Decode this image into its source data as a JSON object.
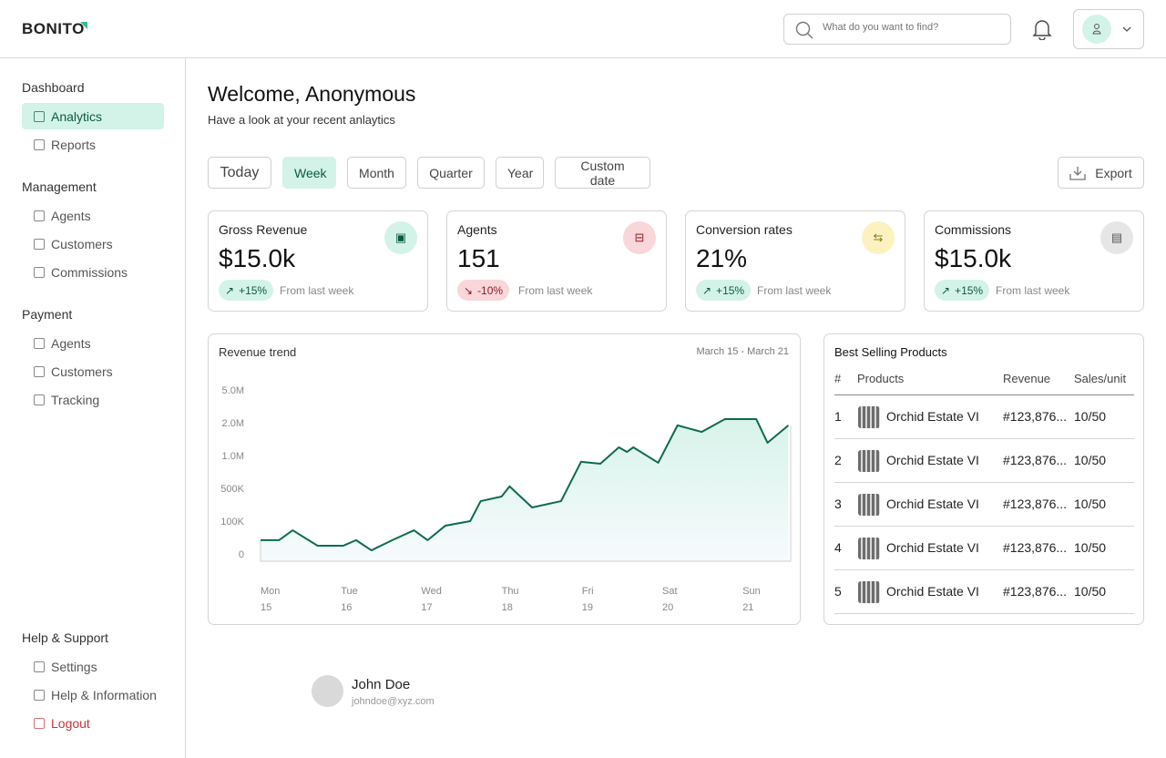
{
  "header": {
    "logo": "BONITO",
    "search_placeholder": "What do you want to find?"
  },
  "sidebar": {
    "sections": [
      {
        "title": "Dashboard",
        "items": [
          {
            "label": "Analytics",
            "icon": "chart-icon",
            "active": true
          },
          {
            "label": "Reports",
            "icon": "document-icon"
          }
        ]
      },
      {
        "title": "Management",
        "items": [
          {
            "label": "Agents",
            "icon": "briefcase-icon"
          },
          {
            "label": "Customers",
            "icon": "users-icon"
          },
          {
            "label": "Commissions",
            "icon": "money-icon"
          }
        ]
      },
      {
        "title": "Payment",
        "items": [
          {
            "label": "Agents",
            "icon": "briefcase-icon"
          },
          {
            "label": "Customers",
            "icon": "users-icon"
          },
          {
            "label": "Tracking",
            "icon": "tracking-icon"
          }
        ]
      },
      {
        "title": "Help & Support",
        "items": [
          {
            "label": "Settings",
            "icon": "gear-icon"
          },
          {
            "label": "Help & Information",
            "icon": "headset-icon"
          },
          {
            "label": "Logout",
            "icon": "logout-icon"
          }
        ]
      }
    ]
  },
  "welcome": {
    "title": "Welcome, Anonymous",
    "subtitle": "Have a look at your recent anlaytics"
  },
  "filters": [
    "Today",
    "Week",
    "Month",
    "Quarter",
    "Year",
    "Custom date"
  ],
  "active_filter": "Week",
  "export_label": "Export",
  "cards": [
    {
      "title": "Gross Revenue",
      "value": "$15.0k",
      "change": "+15%",
      "trend": "up",
      "from": "From last week",
      "icon": "cash-icon",
      "icon_bg": "#d3f3e8",
      "icon_color": "#0b5a43"
    },
    {
      "title": "Agents",
      "value": "151",
      "change": "-10%",
      "trend": "down",
      "from": "From last week",
      "icon": "briefcase-icon",
      "icon_bg": "#f8d6d9",
      "icon_color": "#8a1d26"
    },
    {
      "title": "Conversion rates",
      "value": "21%",
      "change": "+15%",
      "trend": "up",
      "from": "From last week",
      "icon": "swap-icon",
      "icon_bg": "#fbf2c0",
      "icon_color": "#8a7a20"
    },
    {
      "title": "Commissions",
      "value": "$15.0k",
      "change": "+15%",
      "trend": "up",
      "from": "From last week",
      "icon": "receipt-icon",
      "icon_bg": "#e6e6e6",
      "icon_color": "#555"
    }
  ],
  "chart_data": {
    "type": "area",
    "title": "Revenue trend",
    "date_range": "March 15 - March 21",
    "y_ticks": [
      "0",
      "100K",
      "500K",
      "1.0M",
      "2.0M",
      "5.0M"
    ],
    "y_tick_values": [
      0,
      100000,
      500000,
      1000000,
      2000000,
      5000000
    ],
    "x_labels": [
      {
        "day": "Mon",
        "date": "15"
      },
      {
        "day": "Tue",
        "date": "16"
      },
      {
        "day": "Wed",
        "date": "17"
      },
      {
        "day": "Thu",
        "date": "18"
      },
      {
        "day": "Fri",
        "date": "19"
      },
      {
        "day": "Sat",
        "date": "20"
      },
      {
        "day": "Sun",
        "date": "21"
      }
    ],
    "x": [
      0,
      0.23,
      0.4,
      0.71,
      1.03,
      1.19,
      1.38,
      1.64,
      1.91,
      2.08,
      2.3,
      2.61,
      2.74,
      3.0,
      3.1,
      3.38,
      3.74,
      3.99,
      4.23,
      4.46,
      4.56,
      4.64,
      4.95,
      5.19,
      5.49,
      5.78,
      6.17,
      6.31,
      6.57
    ],
    "values": [
      42000,
      42000,
      72000,
      25000,
      25000,
      42000,
      11000,
      42000,
      72000,
      42000,
      86000,
      100000,
      344000,
      400000,
      530000,
      267000,
      344000,
      905000,
      875000,
      1250000,
      1110000,
      1250000,
      890000,
      1920000,
      1720000,
      2330000,
      2330000,
      1390000,
      1920000
    ],
    "line_color": "#0d6b4f"
  },
  "products": {
    "title": "Best Selling Products",
    "columns": [
      "#",
      "Products",
      "Revenue",
      "Sales/unit"
    ],
    "rows": [
      {
        "n": "1",
        "name": "Orchid Estate VI",
        "revenue": "#123,876...",
        "sales": "10/50"
      },
      {
        "n": "2",
        "name": "Orchid Estate VI",
        "revenue": "#123,876...",
        "sales": "10/50"
      },
      {
        "n": "3",
        "name": "Orchid Estate VI",
        "revenue": "#123,876...",
        "sales": "10/50"
      },
      {
        "n": "4",
        "name": "Orchid Estate VI",
        "revenue": "#123,876...",
        "sales": "10/50"
      },
      {
        "n": "5",
        "name": "Orchid Estate VI",
        "revenue": "#123,876...",
        "sales": "10/50"
      }
    ]
  },
  "user": {
    "name": "John Doe",
    "email": "johndoe@xyz.com"
  }
}
